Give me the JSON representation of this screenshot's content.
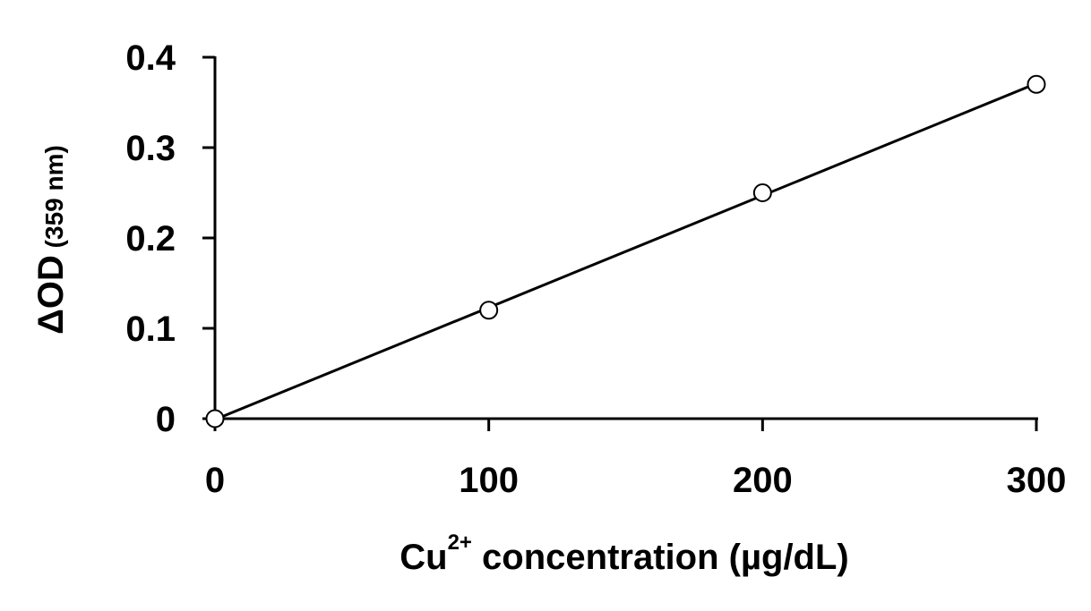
{
  "chart_data": {
    "type": "scatter",
    "x": [
      0,
      100,
      200,
      300
    ],
    "series": [
      {
        "values": [
          0,
          0.12,
          0.25,
          0.37
        ],
        "marker": "open-circle",
        "fit_line": "linear",
        "color": "#000000"
      }
    ],
    "xlim": [
      0,
      300
    ],
    "ylim": [
      0,
      0.4
    ],
    "x_ticks": [
      "0",
      "100",
      "200",
      "300"
    ],
    "y_ticks": [
      "0",
      "0.1",
      "0.2",
      "0.3",
      "0.4"
    ],
    "xlabel": {
      "main": "Cu",
      "superscript": "2+",
      "rest": " concentration (µg/dL)"
    },
    "ylabel": {
      "main": "ΔOD",
      "sub": " (359 nm)"
    },
    "grid": false,
    "legend": "none"
  }
}
